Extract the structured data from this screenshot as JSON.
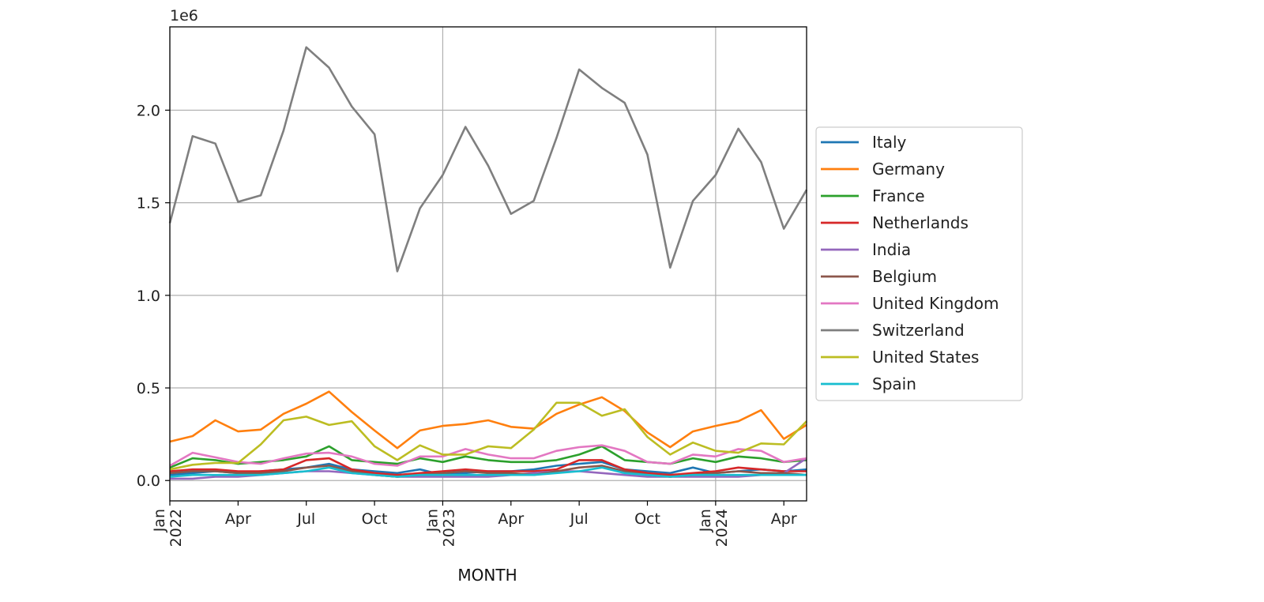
{
  "chart_data": {
    "type": "line",
    "xlabel": "MONTH",
    "ylabel": "",
    "y_offset_label": "1e6",
    "y_scale": 1000000,
    "ylim": [
      -0.11,
      2.45
    ],
    "grid": true,
    "legend": "right",
    "x": [
      "2022-01",
      "2022-02",
      "2022-03",
      "2022-04",
      "2022-05",
      "2022-06",
      "2022-07",
      "2022-08",
      "2022-09",
      "2022-10",
      "2022-11",
      "2022-12",
      "2023-01",
      "2023-02",
      "2023-03",
      "2023-04",
      "2023-05",
      "2023-06",
      "2023-07",
      "2023-08",
      "2023-09",
      "2023-10",
      "2023-11",
      "2023-12",
      "2024-01",
      "2024-02",
      "2024-03",
      "2024-04",
      "2024-05"
    ],
    "x_ticks": [
      {
        "month": "2022-01",
        "label": "Jan",
        "year": "2022"
      },
      {
        "month": "2022-04",
        "label": "Apr"
      },
      {
        "month": "2022-07",
        "label": "Jul"
      },
      {
        "month": "2022-10",
        "label": "Oct"
      },
      {
        "month": "2023-01",
        "label": "Jan",
        "year": "2023"
      },
      {
        "month": "2023-04",
        "label": "Apr"
      },
      {
        "month": "2023-07",
        "label": "Jul"
      },
      {
        "month": "2023-10",
        "label": "Oct"
      },
      {
        "month": "2024-01",
        "label": "Jan",
        "year": "2024"
      },
      {
        "month": "2024-04",
        "label": "Apr"
      }
    ],
    "y_ticks": [
      {
        "value": 0.0,
        "label": "0.0"
      },
      {
        "value": 0.5,
        "label": "0.5"
      },
      {
        "value": 1.0,
        "label": "1.0"
      },
      {
        "value": 1.5,
        "label": "1.5"
      },
      {
        "value": 2.0,
        "label": "2.0"
      }
    ],
    "series": [
      {
        "name": "Italy",
        "color": "#1f77b4",
        "values": [
          30000,
          40000,
          50000,
          40000,
          50000,
          60000,
          70000,
          90000,
          60000,
          50000,
          40000,
          60000,
          30000,
          40000,
          50000,
          50000,
          60000,
          80000,
          90000,
          100000,
          60000,
          50000,
          40000,
          70000,
          40000,
          50000,
          60000,
          50000,
          60000
        ]
      },
      {
        "name": "Germany",
        "color": "#ff7f0e",
        "values": [
          210000,
          240000,
          325000,
          265000,
          275000,
          360000,
          415000,
          480000,
          370000,
          270000,
          175000,
          270000,
          295000,
          305000,
          325000,
          290000,
          280000,
          360000,
          410000,
          450000,
          375000,
          260000,
          180000,
          265000,
          295000,
          320000,
          380000,
          225000,
          300000
        ]
      },
      {
        "name": "France",
        "color": "#2ca02c",
        "values": [
          70000,
          120000,
          110000,
          90000,
          100000,
          110000,
          130000,
          185000,
          110000,
          100000,
          90000,
          120000,
          100000,
          130000,
          110000,
          100000,
          100000,
          110000,
          140000,
          185000,
          110000,
          100000,
          90000,
          120000,
          100000,
          130000,
          120000,
          100000,
          110000
        ]
      },
      {
        "name": "Netherlands",
        "color": "#d62728",
        "values": [
          50000,
          60000,
          60000,
          50000,
          50000,
          60000,
          110000,
          120000,
          60000,
          40000,
          30000,
          40000,
          50000,
          60000,
          50000,
          50000,
          50000,
          60000,
          110000,
          110000,
          60000,
          40000,
          30000,
          40000,
          50000,
          70000,
          60000,
          50000,
          50000
        ]
      },
      {
        "name": "India",
        "color": "#9467bd",
        "values": [
          10000,
          10000,
          20000,
          20000,
          30000,
          40000,
          50000,
          50000,
          40000,
          30000,
          20000,
          20000,
          20000,
          20000,
          20000,
          30000,
          40000,
          50000,
          50000,
          40000,
          30000,
          20000,
          20000,
          20000,
          20000,
          20000,
          30000,
          40000,
          120000
        ]
      },
      {
        "name": "Belgium",
        "color": "#8c564b",
        "values": [
          40000,
          50000,
          50000,
          40000,
          40000,
          50000,
          70000,
          80000,
          50000,
          30000,
          20000,
          30000,
          40000,
          50000,
          40000,
          40000,
          30000,
          50000,
          70000,
          80000,
          50000,
          30000,
          20000,
          30000,
          40000,
          50000,
          40000,
          40000,
          30000
        ]
      },
      {
        "name": "United Kingdom",
        "color": "#e377c2",
        "values": [
          80000,
          150000,
          125000,
          100000,
          90000,
          120000,
          145000,
          150000,
          130000,
          90000,
          80000,
          130000,
          130000,
          170000,
          140000,
          120000,
          120000,
          160000,
          180000,
          190000,
          160000,
          100000,
          90000,
          140000,
          130000,
          170000,
          160000,
          100000,
          120000
        ]
      },
      {
        "name": "Switzerland",
        "color": "#7f7f7f",
        "values": [
          1390000,
          1860000,
          1820000,
          1505000,
          1540000,
          1890000,
          2340000,
          2230000,
          2020000,
          1870000,
          1130000,
          1470000,
          1650000,
          1910000,
          1700000,
          1440000,
          1510000,
          1850000,
          2220000,
          2120000,
          2040000,
          1760000,
          1150000,
          1510000,
          1650000,
          1900000,
          1720000,
          1360000,
          1570000
        ]
      },
      {
        "name": "United States",
        "color": "#bcbd22",
        "values": [
          60000,
          85000,
          95000,
          95000,
          195000,
          325000,
          345000,
          300000,
          320000,
          185000,
          110000,
          190000,
          140000,
          140000,
          185000,
          175000,
          275000,
          420000,
          420000,
          350000,
          385000,
          235000,
          140000,
          205000,
          160000,
          150000,
          200000,
          195000,
          320000
        ]
      },
      {
        "name": "Spain",
        "color": "#17becf",
        "values": [
          20000,
          30000,
          30000,
          30000,
          30000,
          40000,
          50000,
          70000,
          40000,
          30000,
          20000,
          30000,
          30000,
          30000,
          30000,
          30000,
          30000,
          40000,
          50000,
          70000,
          40000,
          30000,
          20000,
          30000,
          30000,
          30000,
          30000,
          30000,
          30000
        ]
      }
    ]
  }
}
